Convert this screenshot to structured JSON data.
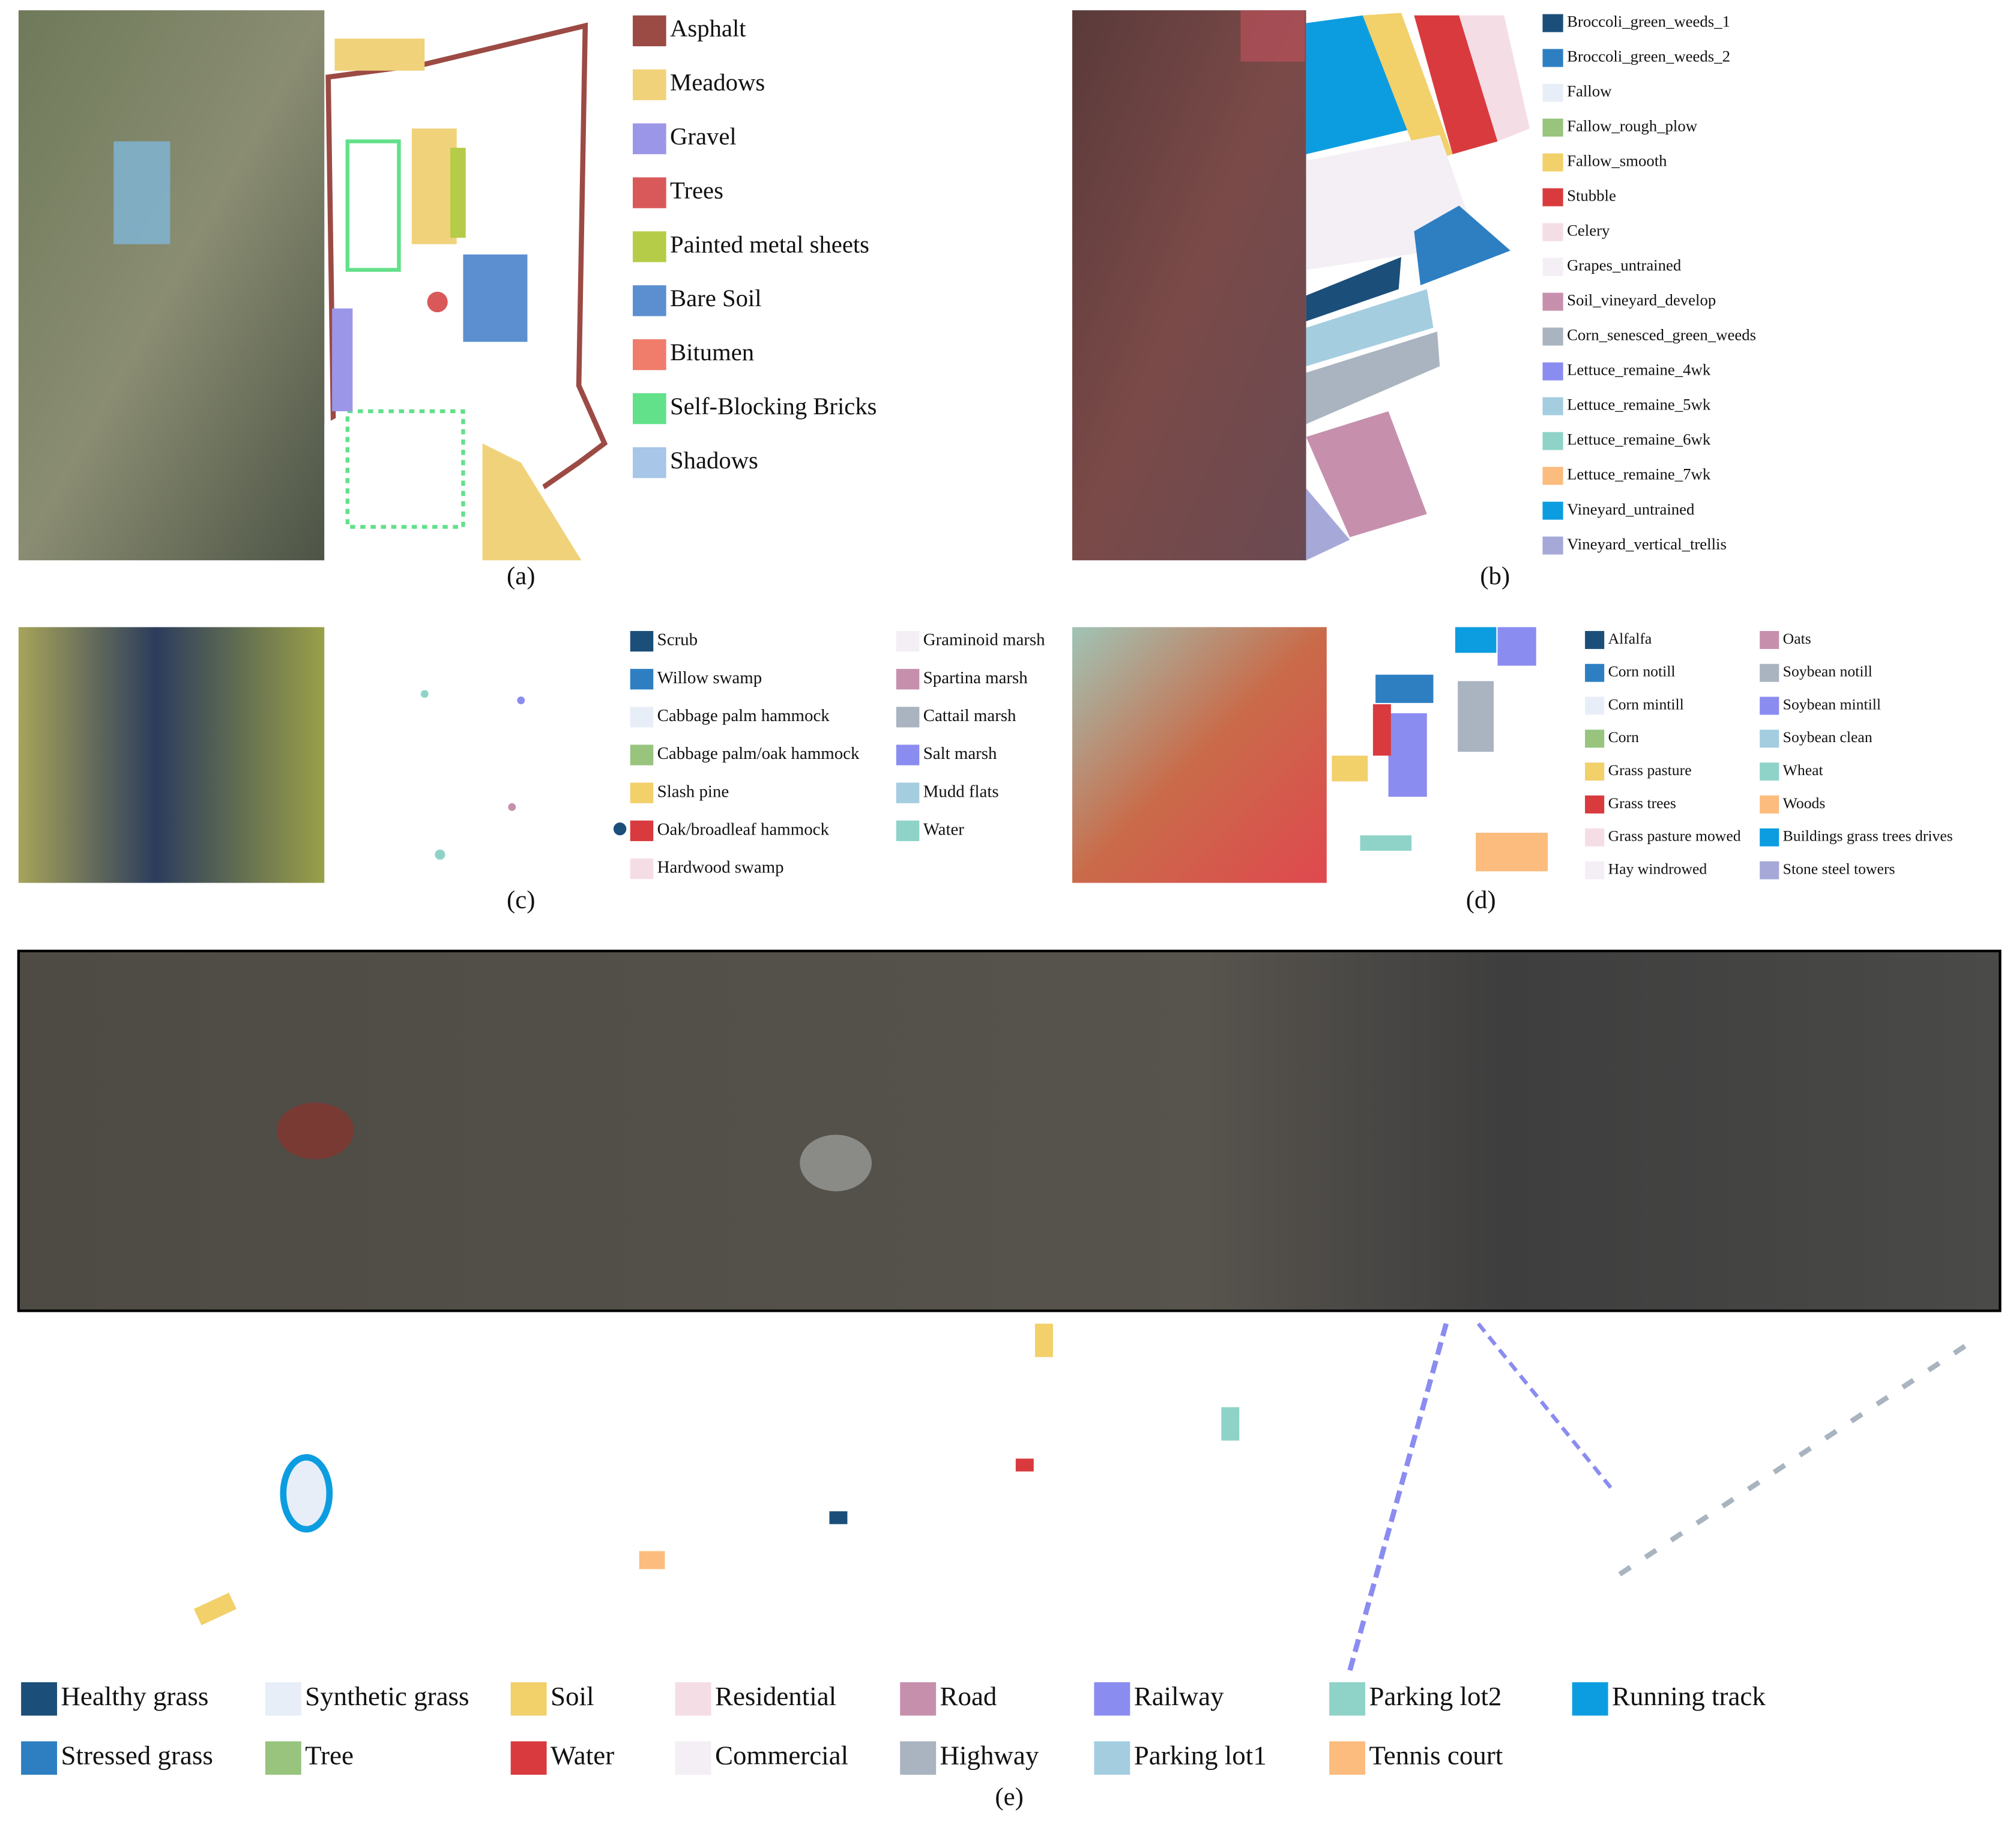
{
  "panels": [
    {
      "caption": "(a)",
      "legend": [
        {
          "label": "Asphalt",
          "color": "#9c4a44"
        },
        {
          "label": "Meadows",
          "color": "#f0d27a"
        },
        {
          "label": "Gravel",
          "color": "#9b96e8"
        },
        {
          "label": "Trees",
          "color": "#d9595a"
        },
        {
          "label": "Painted metal sheets",
          "color": "#b5cc48"
        },
        {
          "label": "Bare Soil",
          "color": "#5b8fd0"
        },
        {
          "label": "Bitumen",
          "color": "#f07c6c"
        },
        {
          "label": "Self-Blocking Bricks",
          "color": "#62e08a"
        },
        {
          "label": "Shadows",
          "color": "#a7c6e8"
        }
      ]
    },
    {
      "caption": "(b)",
      "legend": [
        {
          "label": "Broccoli_green_weeds_1",
          "color": "#1b4f7a"
        },
        {
          "label": "Broccoli_green_weeds_2",
          "color": "#2e7fc2"
        },
        {
          "label": "Fallow",
          "color": "#e8eef8"
        },
        {
          "label": "Fallow_rough_plow",
          "color": "#98c47e"
        },
        {
          "label": "Fallow_smooth",
          "color": "#f2d06a"
        },
        {
          "label": "Stubble",
          "color": "#d93a3e"
        },
        {
          "label": "Celery",
          "color": "#f5dde6"
        },
        {
          "label": "Grapes_untrained",
          "color": "#f3eff5"
        },
        {
          "label": "Soil_vineyard_develop",
          "color": "#c690ad"
        },
        {
          "label": "Corn_senesced_green_weeds",
          "color": "#a9b4c0"
        },
        {
          "label": "Lettuce_remaine_4wk",
          "color": "#8b8cf0"
        },
        {
          "label": "Lettuce_remaine_5wk",
          "color": "#a4cde0"
        },
        {
          "label": "Lettuce_remaine_6wk",
          "color": "#8fd3c8"
        },
        {
          "label": "Lettuce_remaine_7wk",
          "color": "#fbbc7e"
        },
        {
          "label": "Vineyard_untrained",
          "color": "#0c9de0"
        },
        {
          "label": "Vineyard_vertical_trellis",
          "color": "#a6a9d8"
        }
      ]
    },
    {
      "caption": "(c)",
      "legend": [
        {
          "label": "Scrub",
          "color": "#1b4f7a"
        },
        {
          "label": "Willow swamp",
          "color": "#2e7fc2"
        },
        {
          "label": "Cabbage palm hammock",
          "color": "#e8eef8"
        },
        {
          "label": "Cabbage palm/oak hammock",
          "color": "#98c47e"
        },
        {
          "label": "Slash pine",
          "color": "#f2d06a"
        },
        {
          "label": "Oak/broadleaf hammock",
          "color": "#d93a3e"
        },
        {
          "label": "Hardwood swamp",
          "color": "#f5dde6"
        },
        {
          "label": "Graminoid marsh",
          "color": "#f3eff5"
        },
        {
          "label": "Spartina marsh",
          "color": "#c690ad"
        },
        {
          "label": "Cattail marsh",
          "color": "#a9b4c0"
        },
        {
          "label": "Salt marsh",
          "color": "#8b8cf0"
        },
        {
          "label": "Mudd flats",
          "color": "#a4cde0"
        },
        {
          "label": "Water",
          "color": "#8fd3c8"
        }
      ]
    },
    {
      "caption": "(d)",
      "legend": [
        {
          "label": "Alfalfa",
          "color": "#1b4f7a"
        },
        {
          "label": "Corn notill",
          "color": "#2e7fc2"
        },
        {
          "label": "Corn mintill",
          "color": "#e8eef8"
        },
        {
          "label": "Corn",
          "color": "#98c47e"
        },
        {
          "label": "Grass pasture",
          "color": "#f2d06a"
        },
        {
          "label": "Grass trees",
          "color": "#d93a3e"
        },
        {
          "label": "Grass pasture mowed",
          "color": "#f5dde6"
        },
        {
          "label": "Hay windrowed",
          "color": "#f3eff5"
        },
        {
          "label": "Oats",
          "color": "#c690ad"
        },
        {
          "label": "Soybean notill",
          "color": "#a9b4c0"
        },
        {
          "label": "Soybean mintill",
          "color": "#8b8cf0"
        },
        {
          "label": "Soybean clean",
          "color": "#a4cde0"
        },
        {
          "label": "Wheat",
          "color": "#8fd3c8"
        },
        {
          "label": "Woods",
          "color": "#fbbc7e"
        },
        {
          "label": "Buildings grass trees drives",
          "color": "#0c9de0"
        },
        {
          "label": "Stone steel towers",
          "color": "#a6a9d8"
        }
      ]
    },
    {
      "caption": "(e)",
      "legend": [
        {
          "label": "Healthy grass",
          "color": "#1b4f7a"
        },
        {
          "label": "Synthetic grass",
          "color": "#e8eef8"
        },
        {
          "label": "Soil",
          "color": "#f2d06a"
        },
        {
          "label": "Residential",
          "color": "#f5dde6"
        },
        {
          "label": "Road",
          "color": "#c690ad"
        },
        {
          "label": "Railway",
          "color": "#8b8cf0"
        },
        {
          "label": "Parking lot2",
          "color": "#8fd3c8"
        },
        {
          "label": "Running track",
          "color": "#0c9de0"
        },
        {
          "label": "Stressed grass",
          "color": "#2e7fc2"
        },
        {
          "label": "Tree",
          "color": "#98c47e"
        },
        {
          "label": "Water",
          "color": "#d93a3e"
        },
        {
          "label": "Commercial",
          "color": "#f3eff5"
        },
        {
          "label": "Highway",
          "color": "#a9b4c0"
        },
        {
          "label": "Parking lot1",
          "color": "#a4cde0"
        },
        {
          "label": "Tennis court",
          "color": "#fbbc7e"
        }
      ]
    }
  ]
}
